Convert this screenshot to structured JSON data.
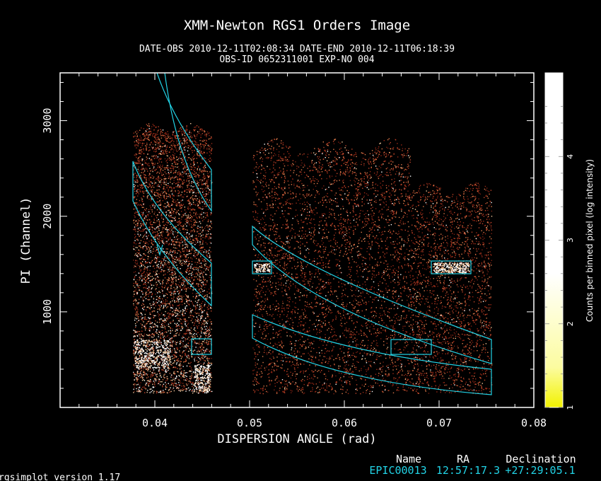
{
  "chart_data": {
    "type": "heatmap",
    "title": "XMM-Newton  RGS1 Orders Image",
    "subtitle_line1": "DATE-OBS 2010-12-11T02:08:34   DATE-END 2010-12-11T06:18:39",
    "subtitle_line2": "OBS-ID 0652311001 EXP-NO 004",
    "xlabel": "DISPERSION ANGLE (rad)",
    "ylabel": "PI (Channel)",
    "xlim": [
      0.03,
      0.08
    ],
    "ylim": [
      0,
      3500
    ],
    "x_ticks": [
      0.04,
      0.05,
      0.06,
      0.07,
      0.08
    ],
    "x_tick_labels": [
      "0.04",
      "0.05",
      "0.06",
      "0.07",
      "0.08"
    ],
    "y_ticks": [
      1000,
      2000,
      3000
    ],
    "y_tick_labels": [
      "1000",
      "2000",
      "3000"
    ],
    "colorbar": {
      "label": "Counts per binned pixel (log intensity)",
      "range": [
        1,
        5
      ],
      "ticks": [
        1,
        2,
        3,
        4
      ],
      "tick_labels": [
        "1",
        "2",
        "3",
        "4"
      ],
      "colors": [
        "#f2f200",
        "#ffffff"
      ]
    },
    "event_regions": [
      {
        "x_range": [
          0.0375,
          0.046
        ],
        "y_range": [
          200,
          2900
        ]
      },
      {
        "x_range": [
          0.0505,
          0.0755
        ],
        "y_range": [
          150,
          2700
        ]
      }
    ],
    "extraction_regions_color": "#22d3e6"
  },
  "source_table": {
    "headers": [
      "Name",
      "RA",
      "Declination"
    ],
    "row": [
      "EPIC00013",
      "12:57:17.3",
      "+27:29:05.1"
    ]
  },
  "footer": {
    "version": "rgsimplot version 1.17"
  }
}
